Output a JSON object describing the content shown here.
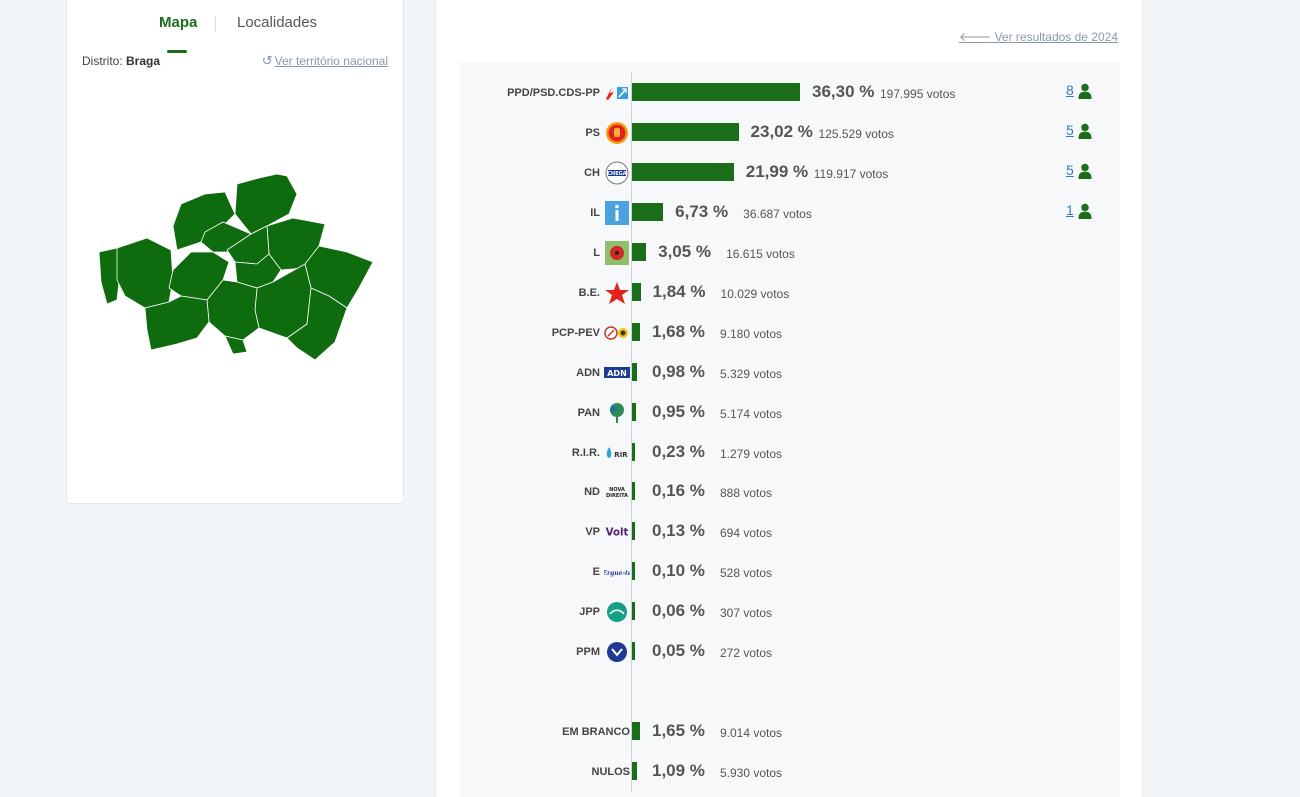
{
  "tabs": {
    "mapa": "Mapa",
    "localidades": "Localidades"
  },
  "district": {
    "label": "Distrito:",
    "value": "Braga"
  },
  "nacional_link": "Ver território nacional",
  "prev_results_link": "Ver resultados de 2024",
  "colors": {
    "bar": "#1a6e1a",
    "map": "#0e6b0e",
    "link": "#3a7bbf"
  },
  "chart_data": {
    "type": "bar",
    "orientation": "horizontal",
    "categories": [
      "PPD/PSD.CDS-PP",
      "PS",
      "CH",
      "IL",
      "L",
      "B.E.",
      "PCP-PEV",
      "ADN",
      "PAN",
      "R.I.R.",
      "ND",
      "VP",
      "E",
      "JPP",
      "PPM",
      "EM BRANCO",
      "NULOS"
    ],
    "percent_labels": [
      "36,30 %",
      "23,02 %",
      "21,99 %",
      "6,73 %",
      "3,05 %",
      "1,84 %",
      "1,68 %",
      "0,98 %",
      "0,95 %",
      "0,23 %",
      "0,16 %",
      "0,13 %",
      "0,10 %",
      "0,06 %",
      "0,05 %",
      "1,65 %",
      "1,09 %"
    ],
    "values": [
      36.3,
      23.02,
      21.99,
      6.73,
      3.05,
      1.84,
      1.68,
      0.98,
      0.95,
      0.23,
      0.16,
      0.13,
      0.1,
      0.06,
      0.05,
      1.65,
      1.09
    ],
    "votes_labels": [
      "197.995 votos",
      "125.529 votos",
      "119.917 votos",
      "36.687 votos",
      "16.615 votos",
      "10.029 votos",
      "9.180 votos",
      "5.329 votos",
      "5.174 votos",
      "1.279 votos",
      "888 votos",
      "694 votos",
      "528 votos",
      "307 votos",
      "272 votos",
      "9.014 votos",
      "5.930 votos"
    ],
    "seats": [
      "8",
      "5",
      "5",
      "1",
      "",
      "",
      "",
      "",
      "",
      "",
      "",
      "",
      "",
      "",
      "",
      "",
      ""
    ],
    "logos": [
      "psd-cds-logo",
      "ps-fist-rose-logo",
      "chega-logo",
      "il-logo",
      "livre-poppy-logo",
      "be-star-logo",
      "pcp-pev-hammer-sickle-logo",
      "adn-logo",
      "pan-tree-logo",
      "rir-logo",
      "nova-direita-logo",
      "volt-logo",
      "ergue-te-logo",
      "jpp-logo",
      "ppm-logo",
      "",
      ""
    ]
  }
}
